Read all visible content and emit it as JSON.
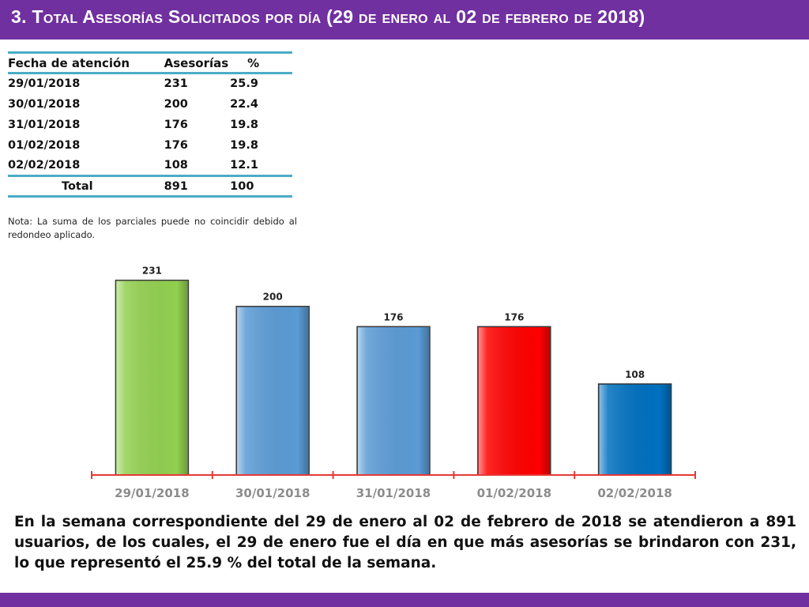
{
  "header": {
    "number": "3.",
    "title": "Total Asesorías Solicitados por día",
    "range": "(29 de enero al 02 de febrero de 2018)"
  },
  "table": {
    "headers": {
      "date": "Fecha de atención",
      "count": "Asesorías",
      "pct": "%"
    },
    "rows": [
      {
        "date": "29/01/2018",
        "count": "231",
        "pct": "25.9"
      },
      {
        "date": "30/01/2018",
        "count": "200",
        "pct": "22.4"
      },
      {
        "date": "31/01/2018",
        "count": "176",
        "pct": "19.8"
      },
      {
        "date": "01/02/2018",
        "count": "176",
        "pct": "19.8"
      },
      {
        "date": "02/02/2018",
        "count": "108",
        "pct": "12.1"
      }
    ],
    "total": {
      "label": "Total",
      "count": "891",
      "pct": "100"
    }
  },
  "note": "Nota: La suma de los parciales puede no coincidir debido al redondeo aplicado.",
  "chart_data": {
    "type": "bar",
    "categories": [
      "29/01/2018",
      "30/01/2018",
      "31/01/2018",
      "01/02/2018",
      "02/02/2018"
    ],
    "values": [
      231,
      200,
      176,
      176,
      108
    ],
    "data_labels": [
      "231",
      "200",
      "176",
      "176",
      "108"
    ],
    "colors": [
      "#92d050",
      "#5b9bd5",
      "#5b9bd5",
      "#ff0000",
      "#0070c0"
    ],
    "axis_color": "#e53935",
    "title": "",
    "xlabel": "",
    "ylabel": "",
    "ylim": [
      0,
      240
    ],
    "grid": false,
    "legend": "none"
  },
  "summary": "En la semana correspondiente del 29 de enero al 02 de febrero de 2018 se atendieron a 891 usuarios, de los cuales, el 29 de enero fue el día en que más asesorías se brindaron con 231, lo que representó el 25.9 % del total de la semana.",
  "colors": {
    "brand": "#7030a0",
    "table_rule": "#4bacc6"
  }
}
